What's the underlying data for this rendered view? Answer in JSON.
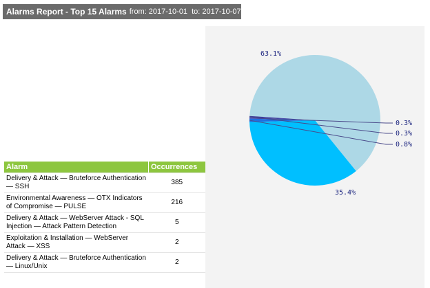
{
  "header": {
    "title": "Alarms Report - Top 15 Alarms",
    "from_label": "from:",
    "from_date": "2017-10-01",
    "to_label": "to:",
    "to_date": "2017-10-07"
  },
  "table": {
    "columns": [
      "Alarm",
      "Occurrences"
    ],
    "rows": [
      {
        "alarm": "Delivery & Attack — Bruteforce Authentication — SSH",
        "count": "385"
      },
      {
        "alarm": "Environmental Awareness — OTX Indicators of Compromise — PULSE",
        "count": "216"
      },
      {
        "alarm": "Delivery & Attack — WebServer Attack - SQL Injection — Attack Pattern Detection",
        "count": "5"
      },
      {
        "alarm": "Exploitation & Installation — WebServer Attack — XSS",
        "count": "2"
      },
      {
        "alarm": "Delivery & Attack — Bruteforce Authentication — Linux/Unix",
        "count": "2"
      }
    ]
  },
  "chart_data": {
    "type": "pie",
    "values": [
      385,
      216,
      5,
      2,
      2
    ],
    "labels": [
      "63.1%",
      "35.4%",
      "0.8%",
      "0.3%",
      "0.3%"
    ],
    "percentages": [
      63.1,
      35.4,
      0.8,
      0.3,
      0.3
    ],
    "colors": [
      "#add8e6",
      "#00bfff",
      "#1e6fe0",
      "#3344cc",
      "#3a3a9e"
    ]
  }
}
